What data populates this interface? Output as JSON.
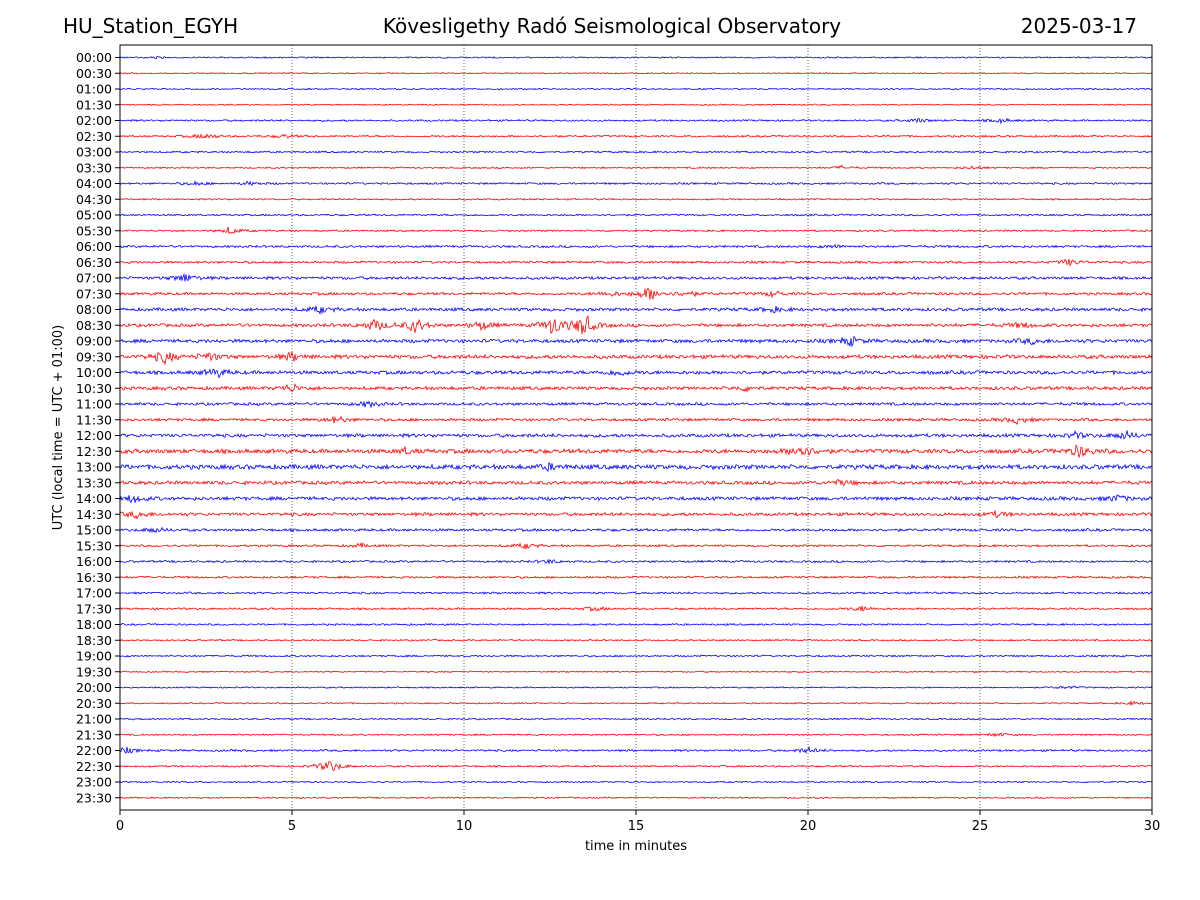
{
  "header": {
    "station": "HU_Station_EGYH",
    "observatory": "Kövesligethy Radó Seismological Observatory",
    "date": "2025-03-17"
  },
  "chart_data": {
    "type": "line",
    "title": "Kövesligethy Radó Seismological Observatory",
    "xlabel": "time in minutes",
    "ylabel": "UTC (local time = UTC + 01:00)",
    "xlim": [
      0,
      30
    ],
    "x_ticks": [
      0,
      5,
      10,
      15,
      20,
      25,
      30
    ],
    "vertical_gridlines_at": [
      5,
      10,
      15,
      20,
      25
    ],
    "row_labels": [
      "00:00",
      "00:30",
      "01:00",
      "01:30",
      "02:00",
      "02:30",
      "03:00",
      "03:30",
      "04:00",
      "04:30",
      "05:00",
      "05:30",
      "06:00",
      "06:30",
      "07:00",
      "07:30",
      "08:00",
      "08:30",
      "09:00",
      "09:30",
      "10:00",
      "10:30",
      "11:00",
      "11:30",
      "12:00",
      "12:30",
      "13:00",
      "13:30",
      "14:00",
      "14:30",
      "15:00",
      "15:30",
      "16:00",
      "16:30",
      "17:00",
      "17:30",
      "18:00",
      "18:30",
      "19:00",
      "19:30",
      "20:00",
      "20:30",
      "21:00",
      "21:30",
      "22:00",
      "22:30",
      "23:00",
      "23:30"
    ],
    "row_colors": [
      "#0000ff",
      "#ff0000"
    ],
    "noise_levels": [
      0.8,
      0.7,
      0.8,
      0.7,
      1.0,
      1.1,
      1.0,
      0.9,
      1.1,
      0.9,
      1.0,
      1.0,
      1.3,
      1.3,
      1.6,
      1.5,
      1.8,
      1.8,
      2.0,
      2.1,
      2.0,
      1.9,
      1.6,
      1.6,
      1.9,
      2.4,
      2.6,
      2.0,
      2.0,
      1.8,
      1.5,
      1.2,
      1.2,
      1.2,
      1.1,
      1.1,
      1.0,
      0.9,
      1.0,
      0.8,
      0.8,
      0.8,
      0.9,
      0.9,
      1.1,
      1.0,
      0.8,
      0.8
    ],
    "events": [
      {
        "row": "00:00",
        "minute": 1.0,
        "amplitude": 1.5
      },
      {
        "row": "02:00",
        "minute": 23.2,
        "amplitude": 2.5
      },
      {
        "row": "02:00",
        "minute": 25.6,
        "amplitude": 2.5
      },
      {
        "row": "02:30",
        "minute": 2.5,
        "amplitude": 3
      },
      {
        "row": "02:30",
        "minute": 4.8,
        "amplitude": 2
      },
      {
        "row": "03:30",
        "minute": 21.0,
        "amplitude": 2
      },
      {
        "row": "03:30",
        "minute": 24.8,
        "amplitude": 2
      },
      {
        "row": "04:00",
        "minute": 2.2,
        "amplitude": 2
      },
      {
        "row": "04:00",
        "minute": 3.8,
        "amplitude": 2
      },
      {
        "row": "05:30",
        "minute": 3.2,
        "amplitude": 4
      },
      {
        "row": "06:00",
        "minute": 20.8,
        "amplitude": 2
      },
      {
        "row": "06:30",
        "minute": 27.6,
        "amplitude": 4
      },
      {
        "row": "07:00",
        "minute": 1.9,
        "amplitude": 6
      },
      {
        "row": "07:30",
        "minute": 15.4,
        "amplitude": 9
      },
      {
        "row": "07:30",
        "minute": 14.2,
        "amplitude": 3
      },
      {
        "row": "07:30",
        "minute": 16.5,
        "amplitude": 3
      },
      {
        "row": "07:30",
        "minute": 19.0,
        "amplitude": 3
      },
      {
        "row": "08:00",
        "minute": 5.8,
        "amplitude": 4
      },
      {
        "row": "08:00",
        "minute": 19.0,
        "amplitude": 3
      },
      {
        "row": "08:30",
        "minute": 7.4,
        "amplitude": 7
      },
      {
        "row": "08:30",
        "minute": 8.6,
        "amplitude": 8
      },
      {
        "row": "08:30",
        "minute": 10.5,
        "amplitude": 5
      },
      {
        "row": "08:30",
        "minute": 12.6,
        "amplitude": 11
      },
      {
        "row": "08:30",
        "minute": 13.5,
        "amplitude": 13
      },
      {
        "row": "08:30",
        "minute": 26.2,
        "amplitude": 3
      },
      {
        "row": "09:00",
        "minute": 21.2,
        "amplitude": 5
      },
      {
        "row": "09:00",
        "minute": 26.5,
        "amplitude": 3
      },
      {
        "row": "09:30",
        "minute": 1.3,
        "amplitude": 7
      },
      {
        "row": "09:30",
        "minute": 2.6,
        "amplitude": 5
      },
      {
        "row": "09:30",
        "minute": 5.0,
        "amplitude": 4
      },
      {
        "row": "10:00",
        "minute": 2.8,
        "amplitude": 5
      },
      {
        "row": "10:00",
        "minute": 14.5,
        "amplitude": 4
      },
      {
        "row": "10:30",
        "minute": 5.0,
        "amplitude": 4
      },
      {
        "row": "10:30",
        "minute": 18.2,
        "amplitude": 3
      },
      {
        "row": "11:00",
        "minute": 7.2,
        "amplitude": 3
      },
      {
        "row": "11:30",
        "minute": 6.3,
        "amplitude": 4
      },
      {
        "row": "11:30",
        "minute": 26.1,
        "amplitude": 4
      },
      {
        "row": "12:00",
        "minute": 29.2,
        "amplitude": 5
      },
      {
        "row": "12:00",
        "minute": 27.8,
        "amplitude": 3
      },
      {
        "row": "12:30",
        "minute": 19.8,
        "amplitude": 9
      },
      {
        "row": "12:30",
        "minute": 27.9,
        "amplitude": 7
      },
      {
        "row": "12:30",
        "minute": 8.3,
        "amplitude": 3
      },
      {
        "row": "13:00",
        "minute": 12.5,
        "amplitude": 3
      },
      {
        "row": "13:30",
        "minute": 21.0,
        "amplitude": 3
      },
      {
        "row": "14:00",
        "minute": 0.4,
        "amplitude": 4
      },
      {
        "row": "14:00",
        "minute": 29.0,
        "amplitude": 4
      },
      {
        "row": "14:30",
        "minute": 0.5,
        "amplitude": 4
      },
      {
        "row": "14:30",
        "minute": 25.5,
        "amplitude": 3
      },
      {
        "row": "15:00",
        "minute": 1.0,
        "amplitude": 3
      },
      {
        "row": "15:30",
        "minute": 11.8,
        "amplitude": 3
      },
      {
        "row": "15:30",
        "minute": 7.0,
        "amplitude": 2
      },
      {
        "row": "16:00",
        "minute": 12.5,
        "amplitude": 2
      },
      {
        "row": "17:30",
        "minute": 21.6,
        "amplitude": 3
      },
      {
        "row": "17:30",
        "minute": 13.8,
        "amplitude": 2
      },
      {
        "row": "20:00",
        "minute": 27.5,
        "amplitude": 2
      },
      {
        "row": "20:30",
        "minute": 29.5,
        "amplitude": 2
      },
      {
        "row": "21:30",
        "minute": 25.5,
        "amplitude": 2
      },
      {
        "row": "22:00",
        "minute": 20.0,
        "amplitude": 3
      },
      {
        "row": "22:00",
        "minute": 0.2,
        "amplitude": 3
      },
      {
        "row": "22:30",
        "minute": 6.1,
        "amplitude": 8
      }
    ]
  }
}
